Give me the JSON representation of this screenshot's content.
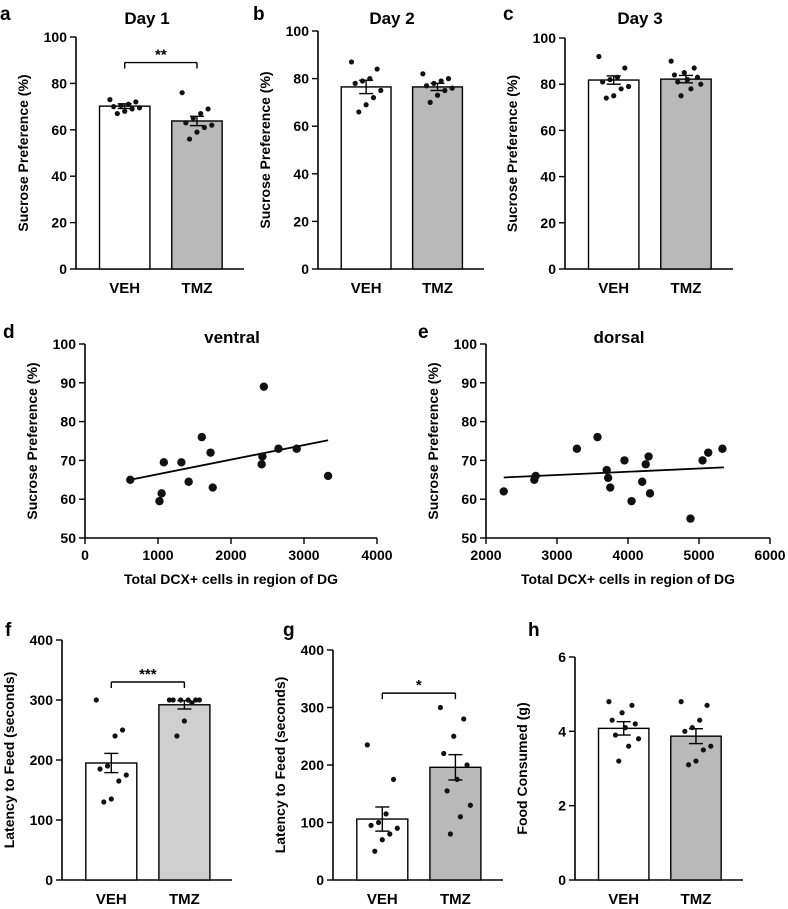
{
  "colors": {
    "veh": "#ffffff",
    "tmz": "#b9b9b9",
    "tmz_light": "#cfcfcf",
    "ink": "#000000"
  },
  "chart_data": [
    {
      "id": "a",
      "letter": "a",
      "type": "bar",
      "title": "Day 1",
      "ylabel": "Sucrose Preference (%)",
      "xlabel": "",
      "ylim": [
        0,
        100
      ],
      "yticks": [
        "0",
        "20",
        "40",
        "60",
        "80",
        "100"
      ],
      "categories": [
        "VEH",
        "TMZ"
      ],
      "values": [
        70.2,
        63.8
      ],
      "sem": [
        1.0,
        2.0
      ],
      "fill": [
        "veh",
        "tmz"
      ],
      "points": [
        [
          73,
          72,
          71,
          70.5,
          70,
          69.5,
          69,
          68,
          67
        ],
        [
          76,
          69,
          67,
          65,
          63,
          62,
          61,
          59,
          56
        ]
      ],
      "sig": "**"
    },
    {
      "id": "b",
      "letter": "b",
      "type": "bar",
      "title": "Day 2",
      "ylabel": "Sucrose Preference (%)",
      "xlabel": "",
      "ylim": [
        0,
        100
      ],
      "yticks": [
        "0",
        "20",
        "40",
        "60",
        "80",
        "100"
      ],
      "categories": [
        "VEH",
        "TMZ"
      ],
      "values": [
        76.5,
        76.5
      ],
      "sem": [
        2.8,
        1.5
      ],
      "fill": [
        "veh",
        "tmz"
      ],
      "points": [
        [
          87,
          84,
          80,
          79,
          78,
          75,
          72,
          69,
          66
        ],
        [
          82,
          80,
          79,
          78,
          77,
          76,
          75,
          73,
          70
        ]
      ],
      "sig": ""
    },
    {
      "id": "c",
      "letter": "c",
      "type": "bar",
      "title": "Day 3",
      "ylabel": "Sucrose Preference (%)",
      "xlabel": "",
      "ylim": [
        0,
        100
      ],
      "yticks": [
        "0",
        "20",
        "40",
        "60",
        "80",
        "100"
      ],
      "categories": [
        "VEH",
        "TMZ"
      ],
      "values": [
        81.8,
        82.2
      ],
      "sem": [
        1.8,
        1.6
      ],
      "fill": [
        "veh",
        "tmz"
      ],
      "points": [
        [
          92,
          87,
          83,
          82,
          81,
          79,
          78,
          75,
          74
        ],
        [
          90,
          87,
          85,
          84,
          83,
          82,
          81,
          80,
          78,
          75
        ]
      ],
      "sig": ""
    },
    {
      "id": "d",
      "letter": "d",
      "type": "scatter",
      "title": "ventral",
      "ylabel": "Sucrose Preference (%)",
      "xlabel": "Total DCX+ cells in region of DG",
      "xlim": [
        0,
        4000
      ],
      "ylim": [
        50,
        100
      ],
      "xticks": [
        0,
        1000,
        2000,
        3000,
        4000
      ],
      "yticks": [
        50,
        60,
        70,
        80,
        90,
        100
      ],
      "x": [
        620,
        1020,
        1050,
        1080,
        1320,
        1420,
        1600,
        1720,
        1750,
        2420,
        2430,
        2450,
        2650,
        2900,
        3330
      ],
      "y": [
        65,
        59.5,
        61.5,
        69.5,
        69.5,
        64.5,
        76,
        72,
        63,
        69,
        71,
        89,
        73,
        73,
        66
      ],
      "fit": {
        "x": [
          620,
          3330
        ],
        "y": [
          65,
          75.2
        ]
      }
    },
    {
      "id": "e",
      "letter": "e",
      "type": "scatter",
      "title": "dorsal",
      "ylabel": "Sucrose Preference (%)",
      "xlabel": "Total DCX+ cells in region of DG",
      "xlim": [
        2000,
        6000
      ],
      "ylim": [
        50,
        100
      ],
      "xticks": [
        2000,
        3000,
        4000,
        5000,
        6000
      ],
      "yticks": [
        50,
        60,
        70,
        80,
        90,
        100
      ],
      "x": [
        2250,
        2680,
        2700,
        3280,
        3570,
        3700,
        3720,
        3750,
        3950,
        4050,
        4200,
        4250,
        4290,
        4310,
        4880,
        5050,
        5130,
        5330
      ],
      "y": [
        62,
        65,
        66,
        73,
        76,
        67.5,
        65.5,
        63,
        70,
        59.5,
        64.5,
        69,
        71,
        61.5,
        55,
        70,
        72,
        73
      ],
      "fit": {
        "x": [
          2250,
          5350
        ],
        "y": [
          65.6,
          68.2
        ]
      }
    },
    {
      "id": "f",
      "letter": "f",
      "type": "bar",
      "title": "",
      "ylabel": "Latency to Feed (seconds)",
      "xlabel": "",
      "ylim": [
        0,
        400
      ],
      "yticks": [
        "0",
        "100",
        "200",
        "300",
        "400"
      ],
      "categories": [
        "VEH",
        "TMZ"
      ],
      "values": [
        195,
        292
      ],
      "sem": [
        16,
        7
      ],
      "fill": [
        "veh",
        "tmz_light"
      ],
      "points": [
        [
          300,
          250,
          240,
          190,
          185,
          175,
          165,
          135,
          130
        ],
        [
          300,
          300,
          300,
          300,
          300,
          300,
          295,
          265,
          240
        ]
      ],
      "sig": "***"
    },
    {
      "id": "g",
      "letter": "g",
      "type": "bar",
      "title": "",
      "ylabel": "Latency to Feed (seconds)",
      "xlabel": "",
      "ylim": [
        0,
        400
      ],
      "yticks": [
        "0",
        "100",
        "200",
        "300",
        "400"
      ],
      "categories": [
        "VEH",
        "TMZ"
      ],
      "values": [
        106,
        196
      ],
      "sem": [
        21,
        22
      ],
      "fill": [
        "veh",
        "tmz"
      ],
      "points": [
        [
          235,
          175,
          115,
          100,
          95,
          90,
          80,
          70,
          50
        ],
        [
          300,
          280,
          250,
          220,
          200,
          175,
          155,
          130,
          110,
          80
        ]
      ],
      "sig": "*"
    },
    {
      "id": "h",
      "letter": "h",
      "type": "bar",
      "title": "",
      "ylabel": "Food Consumed (g)",
      "xlabel": "",
      "ylim": [
        0,
        6
      ],
      "yticks": [
        "0",
        "2",
        "4",
        "6"
      ],
      "categories": [
        "VEH",
        "TMZ"
      ],
      "values": [
        4.08,
        3.87
      ],
      "sem": [
        0.18,
        0.2
      ],
      "fill": [
        "veh",
        "tmz"
      ],
      "points": [
        [
          4.8,
          4.7,
          4.5,
          4.3,
          4.2,
          4.1,
          3.9,
          3.8,
          3.6,
          3.2
        ],
        [
          4.8,
          4.7,
          4.3,
          4.1,
          4.0,
          3.6,
          3.5,
          3.2,
          3.1
        ]
      ],
      "sig": ""
    }
  ]
}
